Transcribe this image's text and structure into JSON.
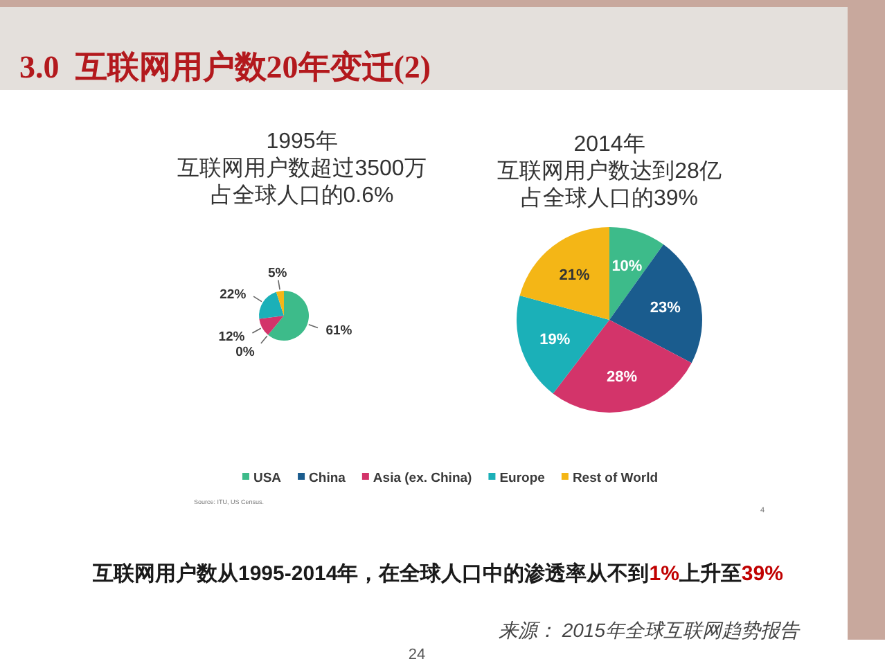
{
  "chart_data": [
    {
      "type": "pie",
      "title": "1995年",
      "subtitle": "互联网用户数超过3500万占全球人口的0.6%",
      "categories": [
        null,
        null,
        null,
        null,
        null
      ],
      "values": [
        61,
        0,
        12,
        22,
        5
      ],
      "value_labels": [
        "61%",
        "0%",
        "12%",
        "22%",
        "5%"
      ],
      "colors": [
        "#3dbb8a",
        "#1a5c8e",
        "#d3346a",
        "#1bb0b8",
        "#f4b616"
      ],
      "annotations": [
        "3.0  互联网用户数20年变迁(2)",
        "Source: ITU, US Census."
      ]
    },
    {
      "type": "pie",
      "title": "2014年",
      "subtitle": "互联网用户数达到28亿占全球人口的39%",
      "categories": [
        "USA",
        "China",
        "Asia (ex. China)",
        "Europe",
        "Rest of World"
      ],
      "values": [
        10,
        23,
        28,
        19,
        21
      ],
      "value_labels": [
        "10%",
        "23%",
        "28%",
        "19%",
        "21%"
      ],
      "colors": [
        "#3dbb8a",
        "#1a5c8e",
        "#d3346a",
        "#1bb0b8",
        "#f4b616"
      ],
      "legend": "bottom",
      "annotations": [
        "4",
        "互联网用户数从1995-2014年，在全球人口中的渗透率从不到1%上升至39%",
        "来源： 2015年全球互联网趋势报告",
        "24"
      ]
    }
  ]
}
